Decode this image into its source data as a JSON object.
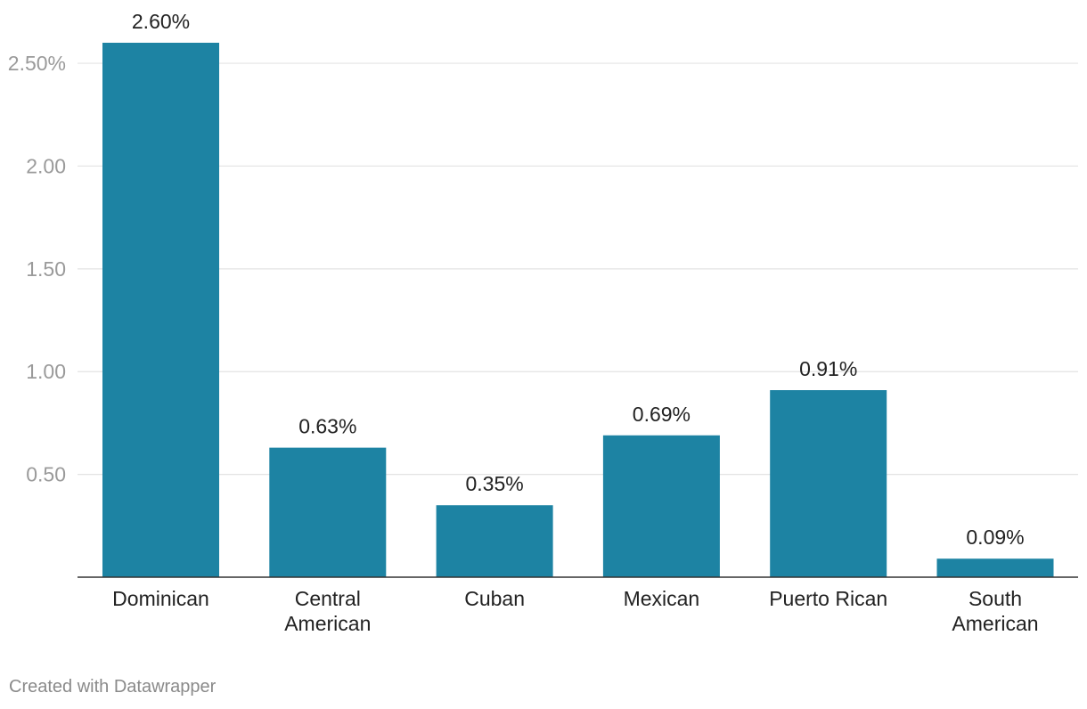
{
  "chart_data": {
    "type": "bar",
    "categories": [
      [
        "Dominican"
      ],
      [
        "Central",
        "American"
      ],
      [
        "Cuban"
      ],
      [
        "Mexican"
      ],
      [
        "Puerto Rican"
      ],
      [
        "South",
        "American"
      ]
    ],
    "values": [
      2.6,
      0.63,
      0.35,
      0.69,
      0.91,
      0.09
    ],
    "value_labels": [
      "2.60%",
      "0.63%",
      "0.35%",
      "0.69%",
      "0.91%",
      "0.09%"
    ],
    "yticks": [
      {
        "value": 0.5,
        "label": "0.50"
      },
      {
        "value": 1.0,
        "label": "1.00"
      },
      {
        "value": 1.5,
        "label": "1.50"
      },
      {
        "value": 2.0,
        "label": "2.00"
      },
      {
        "value": 2.5,
        "label": "2.50%"
      }
    ],
    "ylim": [
      0,
      2.6
    ],
    "grid": true,
    "bar_color": "#1d83a3",
    "title": "",
    "xlabel": "",
    "ylabel": ""
  },
  "footer": {
    "credit": "Created with Datawrapper"
  }
}
